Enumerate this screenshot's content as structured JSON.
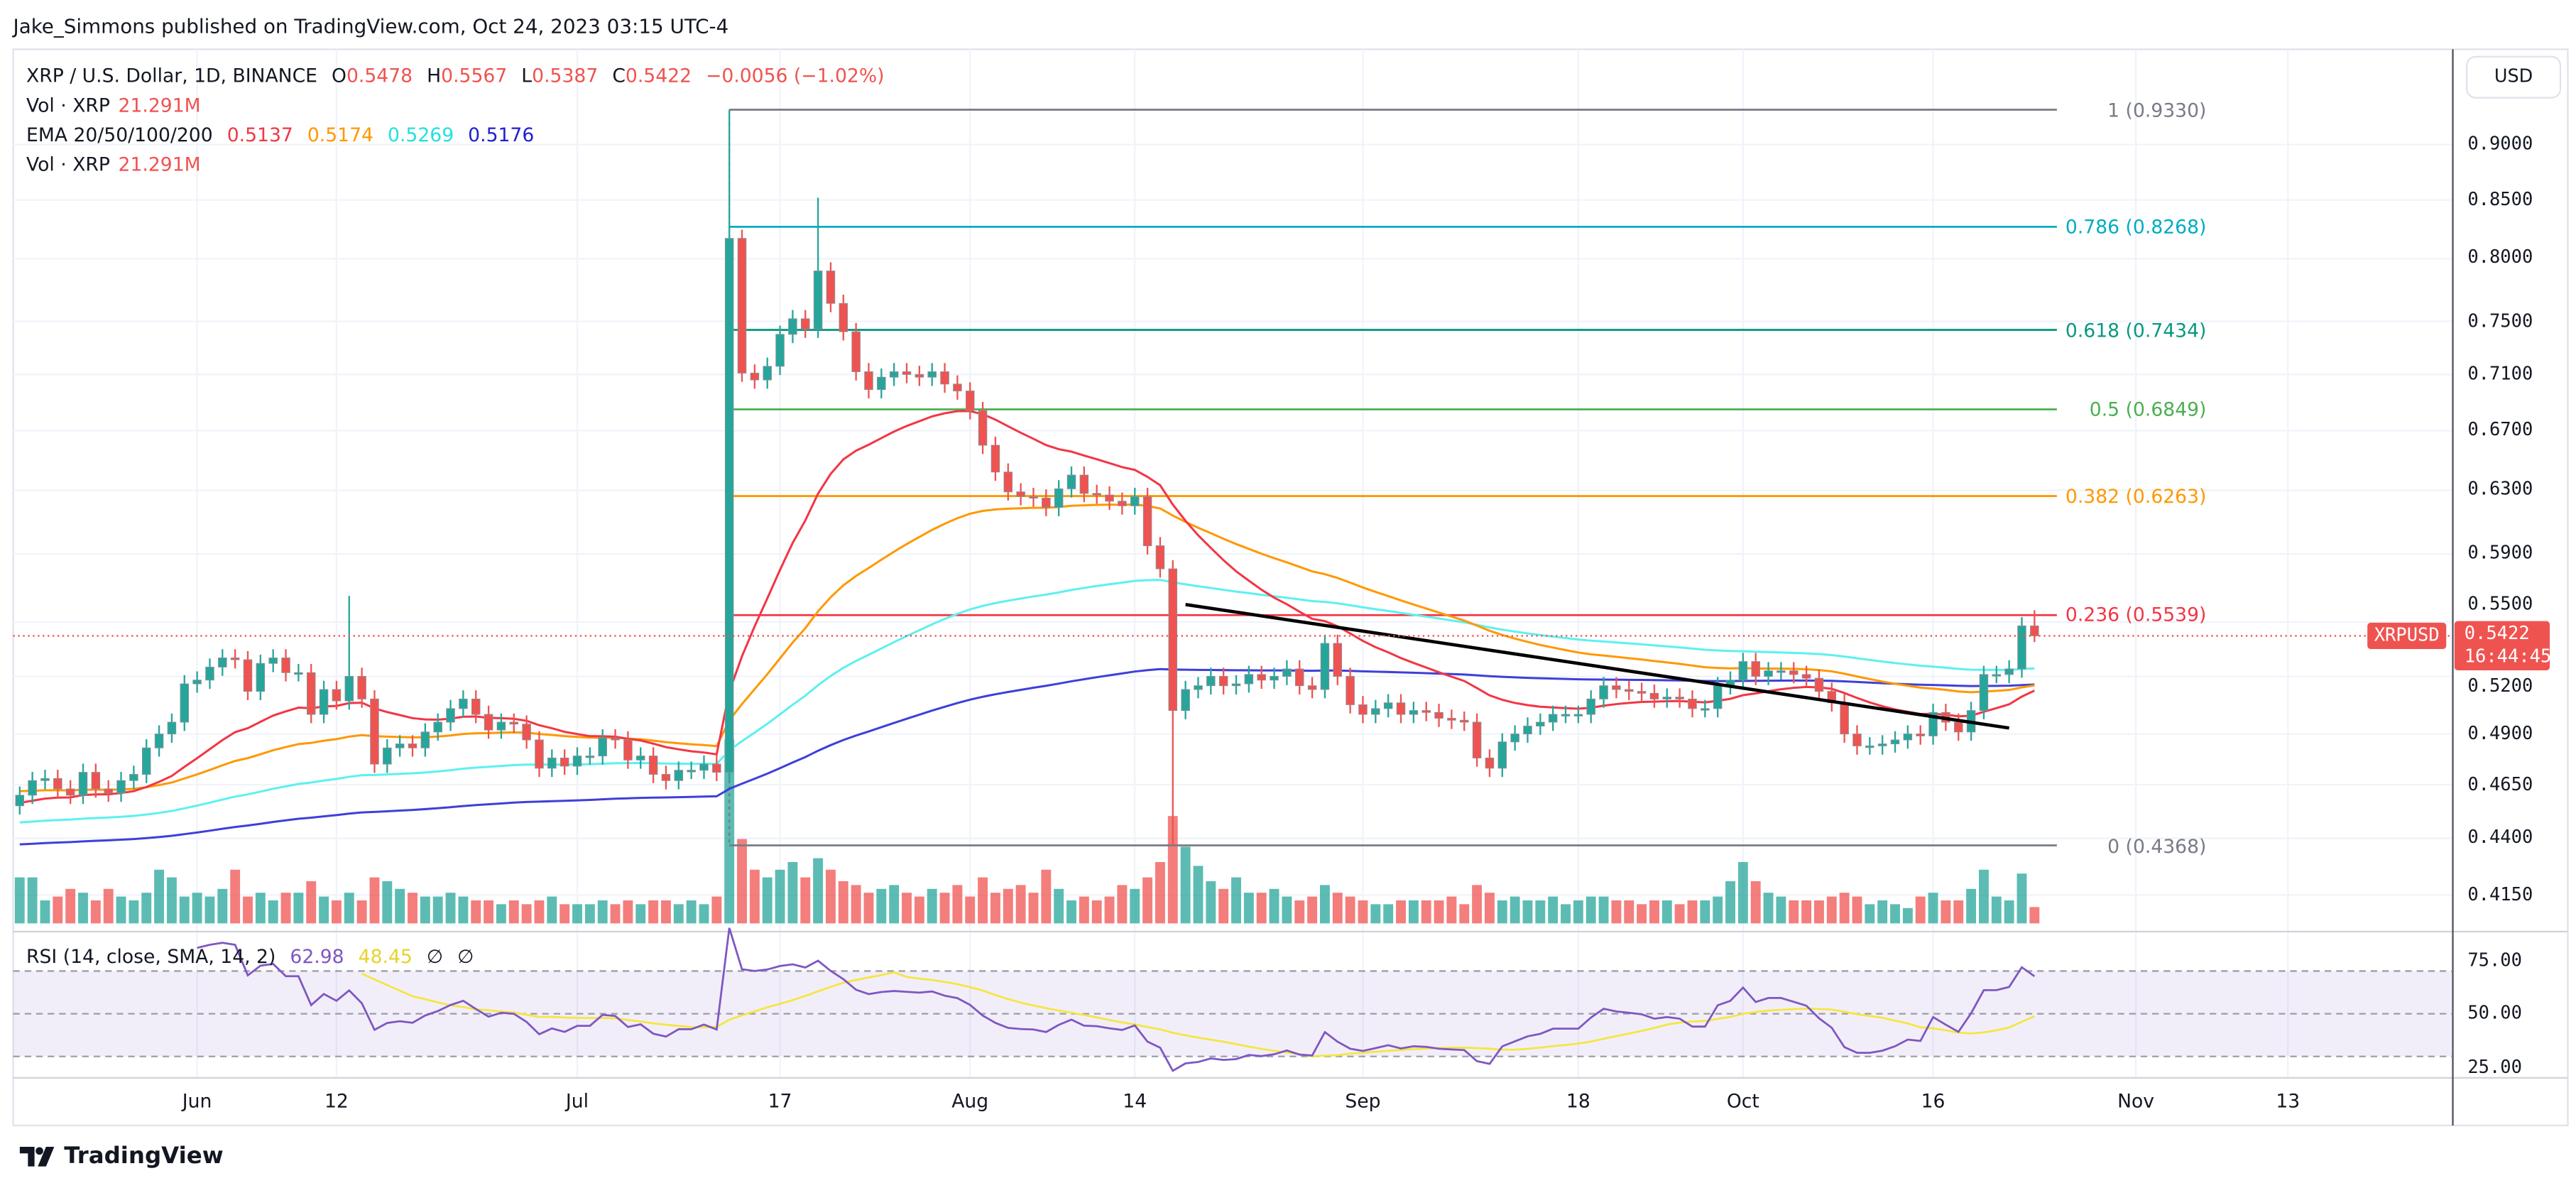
{
  "header": {
    "publisher_line": "Jake_Simmons published on TradingView.com, Oct 24, 2023 03:15 UTC-4"
  },
  "legend": {
    "symbol": "XRP / U.S. Dollar, 1D, BINANCE",
    "o_label": "O",
    "o": "0.5478",
    "h_label": "H",
    "h": "0.5567",
    "l_label": "L",
    "l": "0.5387",
    "c_label": "C",
    "c": "0.5422",
    "change": "−0.0056 (−1.02%)",
    "vol_label": "Vol · XRP",
    "vol": "21.291M",
    "ema_label": "EMA 20/50/100/200",
    "ema20": "0.5137",
    "ema50": "0.5174",
    "ema100": "0.5269",
    "ema200": "0.5176",
    "vol2_label": "Vol · XRP",
    "vol2": "21.291M",
    "rsi_label": "RSI (14, close, SMA, 14, 2)",
    "rsi": "62.98",
    "rsi_sma": "48.45",
    "rsi_x1": "∅",
    "rsi_x2": "∅"
  },
  "axis": {
    "currency": "USD",
    "symbol_tag": "XRPUSD",
    "last_price": "0.5422",
    "countdown": "16:44:45"
  },
  "footer": {
    "brand": "TradingView",
    "logo_icon": "tradingview-logo-icon"
  },
  "colors": {
    "up": "#26a69a",
    "down": "#ef5350",
    "ema20": "#f23645",
    "ema50": "#ff9800",
    "ema100": "#5ef0f0",
    "ema200": "#3f3fd9",
    "rsi": "#7e57c2",
    "rsi_sma": "#f5e642",
    "trendline": "#000000"
  },
  "chart_data": {
    "type": "candlestick",
    "y_scale": "log",
    "grid": true,
    "first_date": "2023-05-18",
    "price_ticks": [
      "0.9000",
      "0.8500",
      "0.8000",
      "0.7500",
      "0.7100",
      "0.6700",
      "0.6300",
      "0.5900",
      "0.5500",
      "0.5200",
      "0.4900",
      "0.4650",
      "0.4400",
      "0.4150"
    ],
    "time_ticks": [
      {
        "label": "Jun",
        "date": "2023-06-01"
      },
      {
        "label": "12",
        "date": "2023-06-12"
      },
      {
        "label": "Jul",
        "date": "2023-07-01"
      },
      {
        "label": "17",
        "date": "2023-07-17"
      },
      {
        "label": "Aug",
        "date": "2023-08-01"
      },
      {
        "label": "14",
        "date": "2023-08-14"
      },
      {
        "label": "Sep",
        "date": "2023-09-01"
      },
      {
        "label": "18",
        "date": "2023-09-18"
      },
      {
        "label": "Oct",
        "date": "2023-10-01"
      },
      {
        "label": "16",
        "date": "2023-10-16"
      },
      {
        "label": "Nov",
        "date": "2023-11-01"
      },
      {
        "label": "13",
        "date": "2023-11-13"
      }
    ],
    "first_open": 0.455,
    "close": [
      0.46,
      0.467,
      0.468,
      0.463,
      0.46,
      0.471,
      0.463,
      0.461,
      0.467,
      0.47,
      0.483,
      0.49,
      0.496,
      0.516,
      0.518,
      0.525,
      0.53,
      0.529,
      0.512,
      0.527,
      0.53,
      0.522,
      0.522,
      0.5,
      0.513,
      0.507,
      0.52,
      0.508,
      0.475,
      0.483,
      0.485,
      0.483,
      0.491,
      0.496,
      0.503,
      0.508,
      0.5,
      0.492,
      0.496,
      0.495,
      0.487,
      0.473,
      0.478,
      0.474,
      0.479,
      0.479,
      0.488,
      0.487,
      0.477,
      0.479,
      0.47,
      0.467,
      0.472,
      0.472,
      0.475,
      0.471,
      0.817,
      0.711,
      0.706,
      0.716,
      0.74,
      0.752,
      0.744,
      0.79,
      0.764,
      0.742,
      0.712,
      0.699,
      0.708,
      0.712,
      0.71,
      0.708,
      0.712,
      0.703,
      0.698,
      0.684,
      0.66,
      0.642,
      0.629,
      0.626,
      0.625,
      0.619,
      0.631,
      0.64,
      0.628,
      0.627,
      0.623,
      0.62,
      0.626,
      0.595,
      0.581,
      0.502,
      0.513,
      0.515,
      0.52,
      0.515,
      0.516,
      0.521,
      0.518,
      0.52,
      0.524,
      0.515,
      0.513,
      0.538,
      0.52,
      0.505,
      0.5,
      0.503,
      0.506,
      0.5,
      0.502,
      0.501,
      0.498,
      0.497,
      0.496,
      0.478,
      0.473,
      0.486,
      0.49,
      0.494,
      0.496,
      0.5,
      0.5,
      0.5,
      0.508,
      0.515,
      0.513,
      0.512,
      0.511,
      0.508,
      0.509,
      0.508,
      0.503,
      0.503,
      0.515,
      0.518,
      0.528,
      0.52,
      0.523,
      0.523,
      0.521,
      0.519,
      0.512,
      0.506,
      0.49,
      0.484,
      0.484,
      0.485,
      0.487,
      0.49,
      0.489,
      0.501,
      0.496,
      0.491,
      0.502,
      0.521,
      0.521,
      0.524,
      0.5478,
      0.5422
    ],
    "wick_extremes": [
      {
        "date": "2023-07-13",
        "high": 0.933
      },
      {
        "date": "2023-07-20",
        "high": 0.852
      },
      {
        "date": "2023-08-17",
        "low": 0.4368
      },
      {
        "date": "2023-06-13",
        "high": 0.565
      },
      {
        "date": "2023-10-24",
        "high": 0.5567,
        "low": 0.5387
      }
    ],
    "volume_millions": [
      60,
      60,
      30,
      35,
      45,
      40,
      30,
      45,
      35,
      30,
      40,
      70,
      60,
      35,
      40,
      35,
      45,
      70,
      35,
      40,
      30,
      40,
      40,
      55,
      35,
      30,
      40,
      30,
      60,
      55,
      45,
      40,
      35,
      35,
      40,
      35,
      30,
      30,
      25,
      30,
      25,
      30,
      35,
      25,
      25,
      25,
      30,
      25,
      30,
      25,
      30,
      30,
      25,
      30,
      25,
      35,
      240,
      110,
      70,
      60,
      70,
      80,
      60,
      85,
      70,
      55,
      50,
      40,
      45,
      50,
      40,
      35,
      45,
      40,
      50,
      35,
      60,
      40,
      45,
      50,
      40,
      70,
      45,
      30,
      35,
      30,
      35,
      50,
      45,
      60,
      80,
      140,
      100,
      75,
      55,
      45,
      60,
      40,
      40,
      45,
      35,
      30,
      35,
      50,
      40,
      35,
      30,
      25,
      25,
      30,
      30,
      30,
      30,
      35,
      25,
      50,
      40,
      30,
      35,
      30,
      30,
      35,
      25,
      30,
      35,
      35,
      30,
      30,
      25,
      30,
      30,
      25,
      30,
      30,
      35,
      55,
      80,
      55,
      40,
      35,
      30,
      30,
      30,
      35,
      40,
      35,
      25,
      30,
      25,
      20,
      35,
      40,
      30,
      30,
      45,
      70,
      35,
      30,
      65,
      21.291
    ],
    "fib_levels": [
      {
        "ratio": "1",
        "price": 0.933,
        "label": "1 (0.9330)",
        "color": "#787b86"
      },
      {
        "ratio": "0.786",
        "price": 0.8268,
        "label": "0.786 (0.8268)",
        "color": "#00acc1"
      },
      {
        "ratio": "0.618",
        "price": 0.7434,
        "label": "0.618 (0.7434)",
        "color": "#089981"
      },
      {
        "ratio": "0.5",
        "price": 0.6849,
        "label": "0.5 (0.6849)",
        "color": "#4caf50"
      },
      {
        "ratio": "0.382",
        "price": 0.6263,
        "label": "0.382 (0.6263)",
        "color": "#ff9800"
      },
      {
        "ratio": "0.236",
        "price": 0.5539,
        "label": "0.236 (0.5539)",
        "color": "#f23645"
      },
      {
        "ratio": "0",
        "price": 0.4368,
        "label": "0 (0.4368)",
        "color": "#787b86"
      }
    ],
    "fib_range": {
      "start_date": "2023-07-13",
      "end_date": "2023-10-23"
    },
    "trendline": {
      "start": {
        "date": "2023-08-18",
        "price": 0.56
      },
      "end": {
        "date": "2023-10-22",
        "price": 0.493
      }
    },
    "rsi_ticks": [
      "75.00",
      "50.00",
      "25.00"
    ],
    "rsi_band": [
      30,
      70
    ]
  }
}
